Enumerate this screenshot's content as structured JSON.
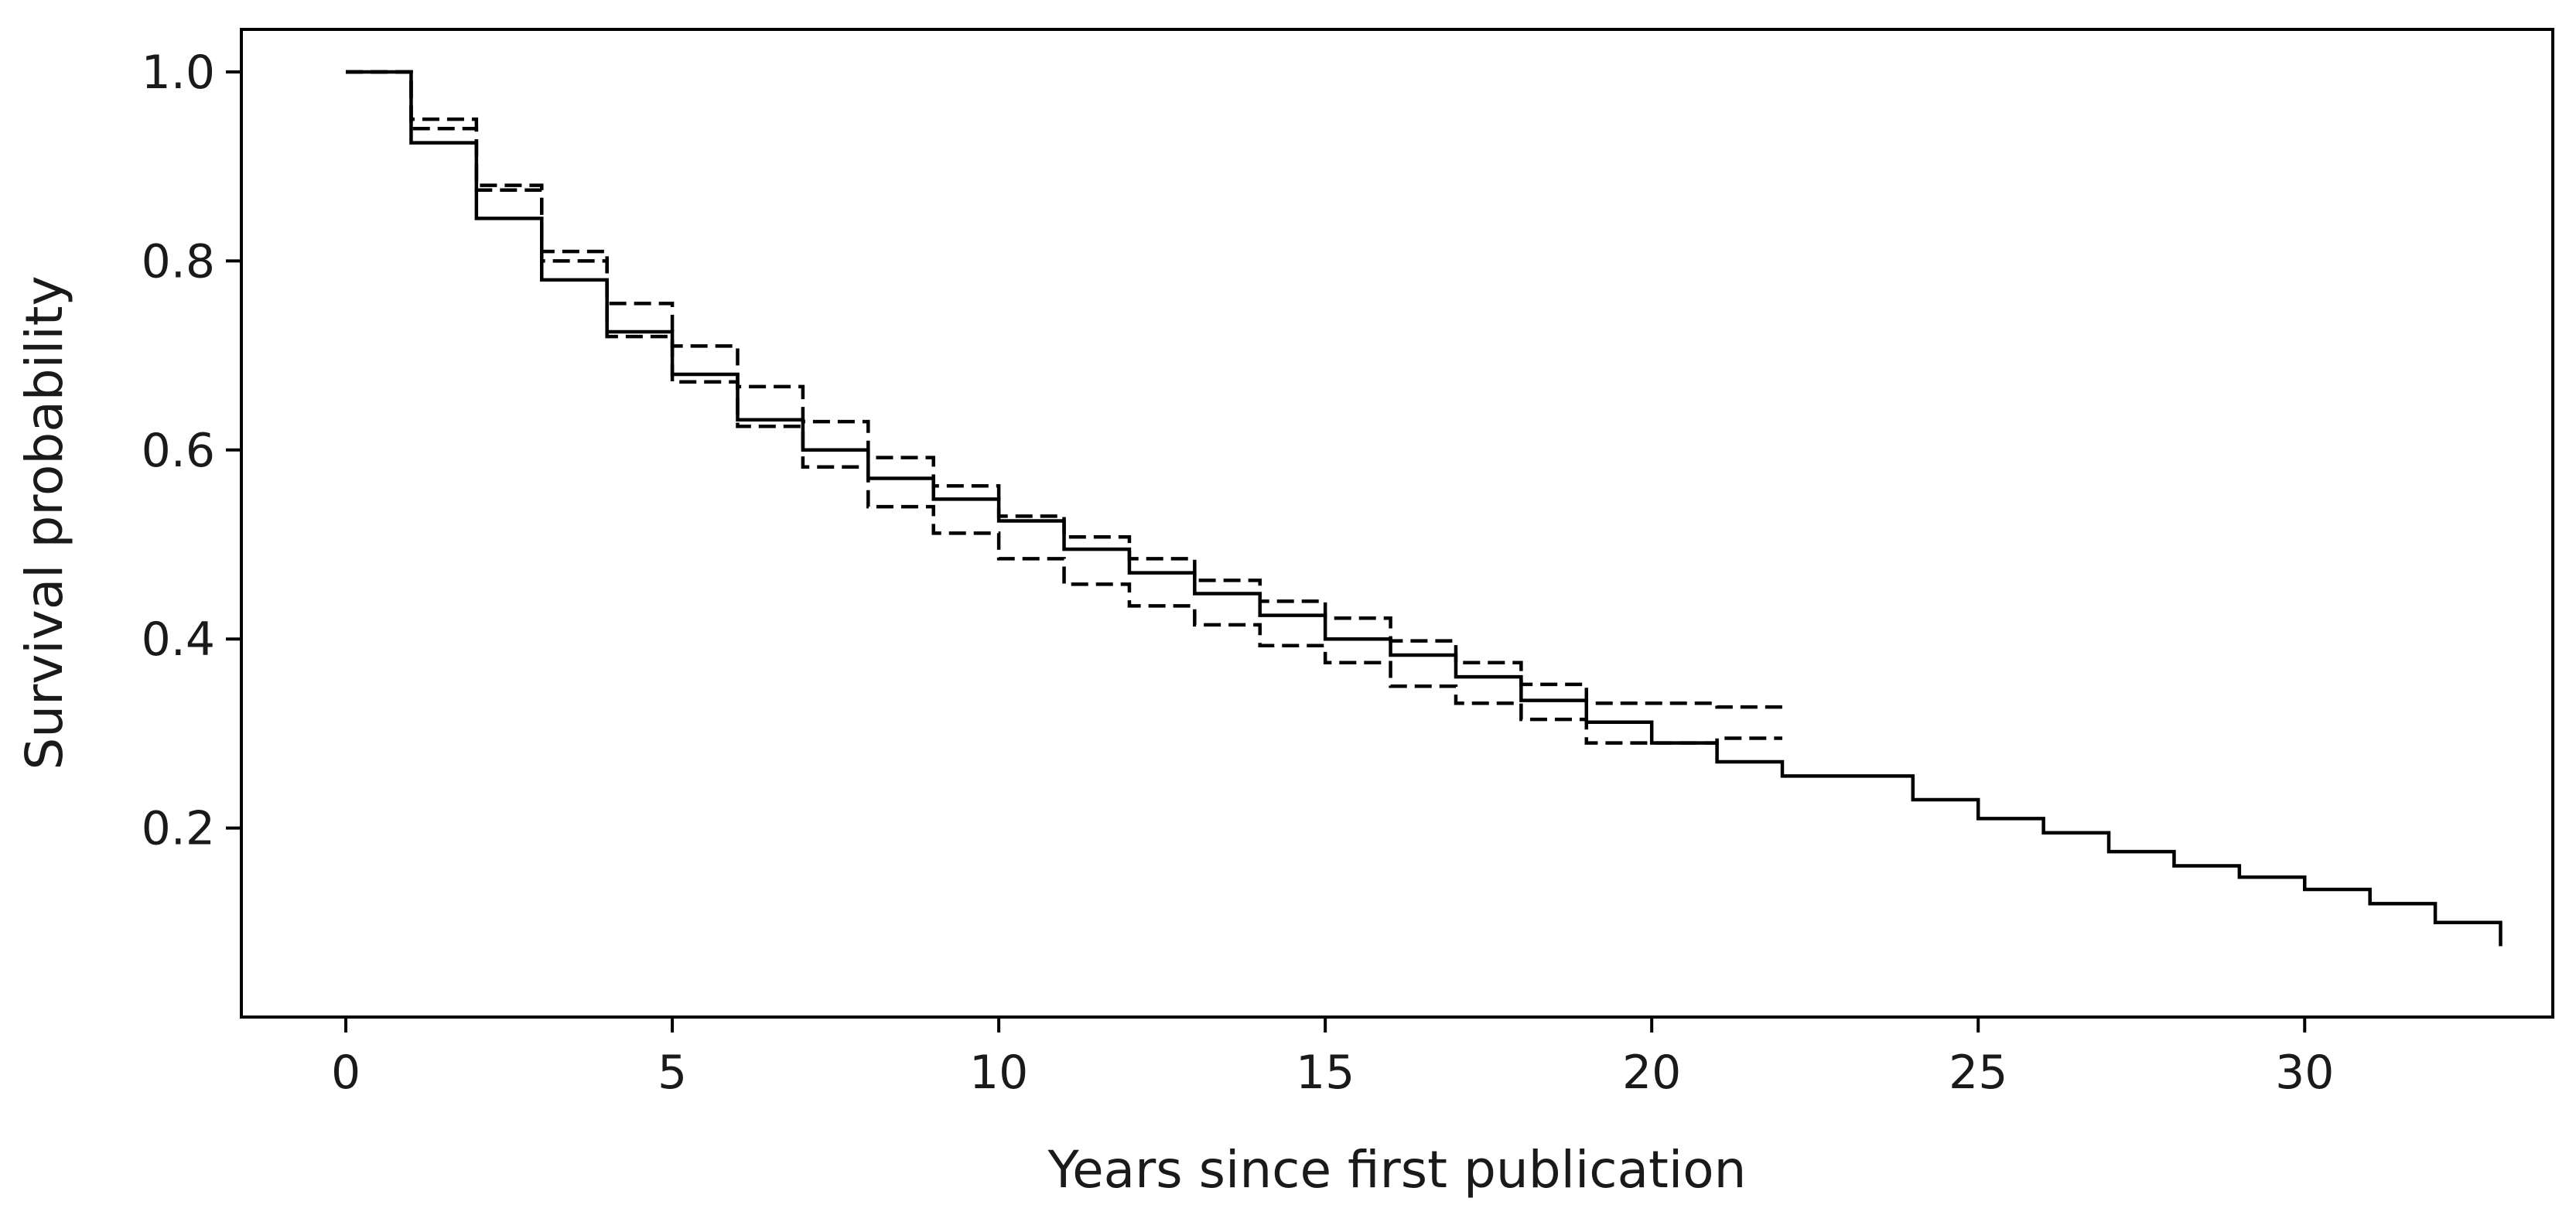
{
  "chart_data": {
    "type": "line",
    "title": "",
    "xlabel": "Years since first publication",
    "ylabel": "Survival probability",
    "xlim": [
      -1.6,
      33.8
    ],
    "ylim": [
      0.0,
      1.045
    ],
    "x_ticks": [
      0,
      5,
      10,
      15,
      20,
      25,
      30
    ],
    "y_ticks": [
      0.2,
      0.4,
      0.6,
      0.8,
      1.0
    ],
    "x_tick_labels": [
      "0",
      "5",
      "10",
      "15",
      "20",
      "25",
      "30"
    ],
    "y_tick_labels": [
      "0.2",
      "0.4",
      "0.6",
      "0.8",
      "1.0"
    ],
    "grid": false,
    "legend": "none",
    "series": [
      {
        "line_style": "solid",
        "step": "post",
        "x": [
          0,
          1,
          2,
          3,
          4,
          5,
          6,
          7,
          8,
          9,
          10,
          11,
          12,
          13,
          14,
          15,
          16,
          17,
          18,
          19,
          20,
          21,
          22,
          23,
          24,
          25,
          26,
          27,
          28,
          29,
          30,
          31,
          32,
          33
        ],
        "y": [
          1.0,
          0.925,
          0.845,
          0.78,
          0.725,
          0.68,
          0.632,
          0.6,
          0.57,
          0.548,
          0.525,
          0.495,
          0.47,
          0.448,
          0.425,
          0.4,
          0.383,
          0.36,
          0.335,
          0.312,
          0.29,
          0.27,
          0.255,
          0.255,
          0.23,
          0.21,
          0.195,
          0.175,
          0.16,
          0.148,
          0.135,
          0.12,
          0.1,
          0.075
        ]
      },
      {
        "line_style": "dashed",
        "step": "post",
        "x": [
          0,
          1,
          2,
          3,
          4,
          5,
          6,
          7,
          8,
          9,
          10,
          11,
          12,
          13,
          14,
          15,
          16,
          17,
          18,
          19,
          20,
          21,
          22
        ],
        "y": [
          1.0,
          0.95,
          0.88,
          0.81,
          0.755,
          0.71,
          0.667,
          0.63,
          0.592,
          0.562,
          0.53,
          0.508,
          0.485,
          0.462,
          0.44,
          0.422,
          0.398,
          0.375,
          0.352,
          0.332,
          0.332,
          0.328,
          0.328
        ]
      },
      {
        "line_style": "dashed",
        "step": "post",
        "x": [
          0,
          1,
          2,
          3,
          4,
          5,
          6,
          7,
          8,
          9,
          10,
          11,
          12,
          13,
          14,
          15,
          16,
          17,
          18,
          19,
          20,
          21,
          22
        ],
        "y": [
          1.0,
          0.94,
          0.875,
          0.8,
          0.72,
          0.672,
          0.625,
          0.582,
          0.54,
          0.512,
          0.485,
          0.458,
          0.435,
          0.415,
          0.393,
          0.375,
          0.35,
          0.332,
          0.315,
          0.29,
          0.29,
          0.295,
          0.295
        ]
      }
    ]
  }
}
